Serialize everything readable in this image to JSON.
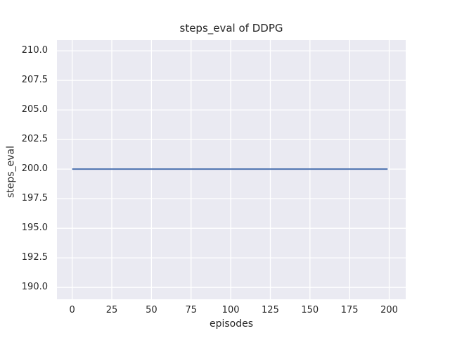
{
  "chart_data": {
    "type": "line",
    "title": "steps_eval of DDPG",
    "xlabel": "episodes",
    "ylabel": "steps_eval",
    "x_ticks": [
      0,
      25,
      50,
      75,
      100,
      125,
      150,
      175,
      200
    ],
    "y_ticks": [
      190.0,
      192.5,
      195.0,
      197.5,
      200.0,
      202.5,
      205.0,
      207.5,
      210.0
    ],
    "y_tick_decimals": 1,
    "xlim": [
      -9.6,
      210.4
    ],
    "ylim": [
      189.0,
      210.9
    ],
    "grid": true,
    "legend": false,
    "series": [
      {
        "name": "steps_eval",
        "x": [
          0,
          199
        ],
        "y": [
          200,
          200
        ],
        "color": "#4c72b0",
        "line_width": 2
      }
    ],
    "colors": {
      "figure_background": "#ffffff",
      "axes_background": "#eaeaf2",
      "grid": "#ffffff",
      "text": "#262626"
    }
  }
}
